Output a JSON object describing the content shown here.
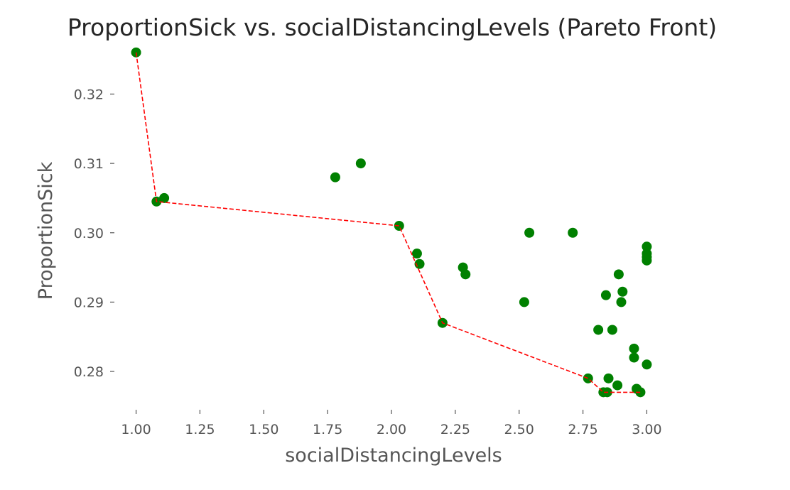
{
  "chart_data": {
    "type": "scatter",
    "title": "ProportionSick vs. socialDistancingLevels (Pareto Front)",
    "xlabel": "socialDistancingLevels",
    "ylabel": "ProportionSick",
    "xlim": [
      0.94,
      3.06
    ],
    "ylim": [
      0.2755,
      0.3266
    ],
    "x_ticks": [
      1.0,
      1.25,
      1.5,
      1.75,
      2.0,
      2.25,
      2.5,
      2.75,
      3.0
    ],
    "x_tick_labels": [
      "1.00",
      "1.25",
      "1.50",
      "1.75",
      "2.00",
      "2.25",
      "2.50",
      "2.75",
      "3.00"
    ],
    "y_ticks": [
      0.28,
      0.29,
      0.3,
      0.31,
      0.32
    ],
    "y_tick_labels": [
      "0.28",
      "0.29",
      "0.30",
      "0.31",
      "0.32"
    ],
    "grid": false,
    "legend": "none",
    "colors": {
      "points": "#008000",
      "pareto_line": "#ff0000"
    },
    "series": [
      {
        "style": "points",
        "points": [
          {
            "x": 1.0,
            "y": 0.326
          },
          {
            "x": 1.08,
            "y": 0.3045
          },
          {
            "x": 1.11,
            "y": 0.305
          },
          {
            "x": 1.78,
            "y": 0.308
          },
          {
            "x": 1.88,
            "y": 0.31
          },
          {
            "x": 2.03,
            "y": 0.301
          },
          {
            "x": 2.1,
            "y": 0.297
          },
          {
            "x": 2.11,
            "y": 0.2955
          },
          {
            "x": 2.2,
            "y": 0.287
          },
          {
            "x": 2.28,
            "y": 0.295
          },
          {
            "x": 2.29,
            "y": 0.294
          },
          {
            "x": 2.52,
            "y": 0.29
          },
          {
            "x": 2.54,
            "y": 0.3
          },
          {
            "x": 2.71,
            "y": 0.3
          },
          {
            "x": 2.77,
            "y": 0.279
          },
          {
            "x": 2.81,
            "y": 0.286
          },
          {
            "x": 2.83,
            "y": 0.277
          },
          {
            "x": 2.84,
            "y": 0.291
          },
          {
            "x": 2.845,
            "y": 0.277
          },
          {
            "x": 2.85,
            "y": 0.279
          },
          {
            "x": 2.865,
            "y": 0.286
          },
          {
            "x": 2.885,
            "y": 0.278
          },
          {
            "x": 2.89,
            "y": 0.294
          },
          {
            "x": 2.9,
            "y": 0.29
          },
          {
            "x": 2.905,
            "y": 0.2915
          },
          {
            "x": 2.95,
            "y": 0.2833
          },
          {
            "x": 2.95,
            "y": 0.282
          },
          {
            "x": 2.96,
            "y": 0.2775
          },
          {
            "x": 2.975,
            "y": 0.277
          },
          {
            "x": 3.0,
            "y": 0.281
          },
          {
            "x": 3.0,
            "y": 0.296
          },
          {
            "x": 3.0,
            "y": 0.2965
          },
          {
            "x": 3.0,
            "y": 0.297
          },
          {
            "x": 3.0,
            "y": 0.298
          }
        ]
      },
      {
        "style": "pareto-line",
        "points": [
          {
            "x": 1.0,
            "y": 0.326
          },
          {
            "x": 1.08,
            "y": 0.3045
          },
          {
            "x": 2.03,
            "y": 0.301
          },
          {
            "x": 2.2,
            "y": 0.287
          },
          {
            "x": 2.77,
            "y": 0.279
          },
          {
            "x": 2.83,
            "y": 0.277
          },
          {
            "x": 2.975,
            "y": 0.277
          }
        ]
      }
    ]
  }
}
